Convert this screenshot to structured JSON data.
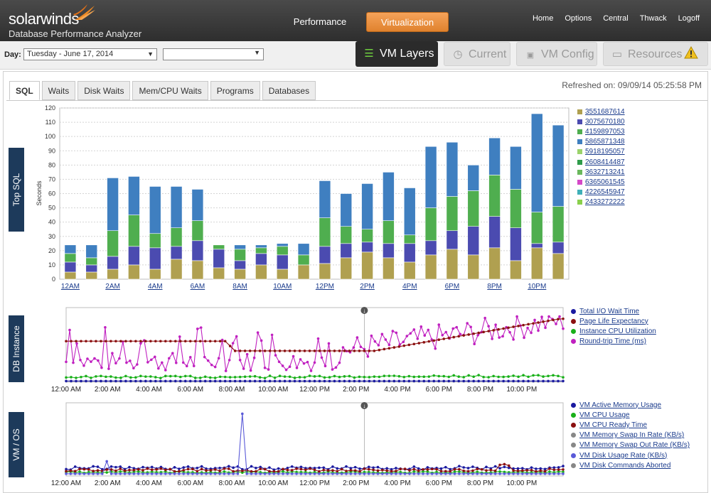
{
  "header": {
    "logo_text": "solarwinds",
    "product_name": "Database Performance Analyzer",
    "nav": {
      "performance": "Performance",
      "virtualization": "Virtualization"
    },
    "links": [
      "Home",
      "Options",
      "Central",
      "Thwack",
      "Logoff"
    ],
    "accent_color": "#e88a35"
  },
  "toolbar": {
    "day_label": "Day:",
    "day_value": "Tuesday - June 17, 2014",
    "second_select_value": "",
    "view_tabs": [
      {
        "label": "VM Layers",
        "icon": "layers-icon",
        "active": true
      },
      {
        "label": "Current",
        "icon": "clock-icon",
        "active": false
      },
      {
        "label": "VM Config",
        "icon": "vm-icon",
        "active": false
      },
      {
        "label": "Resources",
        "icon": "monitor-icon",
        "active": false
      }
    ]
  },
  "tabs": [
    "SQL",
    "Waits",
    "Disk Waits",
    "Mem/CPU Waits",
    "Programs",
    "Databases"
  ],
  "active_tab": "SQL",
  "refreshed": "Refreshed on: 09/09/14 05:25:58 PM",
  "sections": {
    "top_sql": "Top SQL",
    "db_instance": "DB Instance",
    "vm_os": "VM / OS"
  },
  "chart_data": [
    {
      "type": "bar",
      "stacked": true,
      "ylabel": "Seconds",
      "ylim": [
        0,
        120
      ],
      "yticks": [
        0,
        10,
        20,
        30,
        40,
        50,
        60,
        70,
        80,
        90,
        100,
        110,
        120
      ],
      "x_tick_labels": [
        "12AM",
        "2AM",
        "4AM",
        "6AM",
        "8AM",
        "10AM",
        "12PM",
        "2PM",
        "4PM",
        "6PM",
        "8PM",
        "10PM"
      ],
      "legend": [
        "3551687614",
        "3075670180",
        "4159897053",
        "5865871348",
        "5918195057",
        "2608414487",
        "3632713241",
        "6365061545",
        "4226545947",
        "2433272222"
      ],
      "colors": [
        "#b0a050",
        "#4b4bb0",
        "#4fae4f",
        "#3f7fc0",
        "#9bd36b",
        "#2f9c4a",
        "#6ab85c",
        "#d548c8",
        "#3fb0b8",
        "#8ad04c"
      ],
      "totals": [
        24,
        24,
        71,
        72,
        65,
        65,
        63,
        24,
        24,
        24,
        25,
        25,
        69,
        60,
        67,
        75,
        64,
        93,
        96,
        80,
        99,
        93,
        116,
        108
      ],
      "series": [
        {
          "name": "3551687614",
          "values": [
            5,
            5,
            7,
            10,
            7,
            14,
            13,
            8,
            7,
            10,
            7,
            10,
            11,
            15,
            19,
            15,
            12,
            17,
            21,
            17,
            22,
            13,
            22,
            18
          ]
        },
        {
          "name": "3075670180",
          "values": [
            7,
            5,
            9,
            13,
            15,
            9,
            14,
            13,
            6,
            8,
            10,
            0,
            12,
            10,
            7,
            10,
            13,
            10,
            13,
            20,
            22,
            23,
            3,
            8
          ]
        },
        {
          "name": "4159897053",
          "values": [
            6,
            5,
            18,
            22,
            10,
            13,
            14,
            3,
            8,
            4,
            6,
            7,
            20,
            12,
            9,
            16,
            6,
            23,
            24,
            25,
            29,
            27,
            22,
            25
          ]
        },
        {
          "name": "5865871348",
          "values": [
            6,
            9,
            37,
            27,
            33,
            29,
            22,
            0,
            3,
            2,
            2,
            8,
            26,
            23,
            32,
            34,
            33,
            43,
            38,
            18,
            26,
            30,
            69,
            57
          ]
        }
      ]
    },
    {
      "type": "line",
      "x_tick_labels": [
        "12:00 AM",
        "2:00 AM",
        "4:00 AM",
        "6:00 AM",
        "8:00 AM",
        "10:00 AM",
        "12:00 PM",
        "2:00 PM",
        "4:00 PM",
        "6:00 PM",
        "8:00 PM",
        "10:00 PM"
      ],
      "series": [
        {
          "name": "Total I/O Wait Time",
          "color": "#1a1aa0"
        },
        {
          "name": "Page Life Expectancy",
          "color": "#8b1010"
        },
        {
          "name": "Instance CPU Utilization",
          "color": "#19b019"
        },
        {
          "name": "Round-trip Time (ms)",
          "color": "#c020c0"
        }
      ]
    },
    {
      "type": "line",
      "x_tick_labels": [
        "12:00 AM",
        "2:00 AM",
        "4:00 AM",
        "6:00 AM",
        "8:00 AM",
        "10:00 AM",
        "12:00 PM",
        "2:00 PM",
        "4:00 PM",
        "6:00 PM",
        "8:00 PM",
        "10:00 PM"
      ],
      "series": [
        {
          "name": "VM Active Memory Usage",
          "color": "#1a1aa0"
        },
        {
          "name": "VM CPU Usage",
          "color": "#19b019"
        },
        {
          "name": "VM CPU Ready Time",
          "color": "#8b1010"
        },
        {
          "name": "VM Memory Swap In Rate (KB/s)",
          "color": "#888888"
        },
        {
          "name": "VM Memory Swap Out Rate (KB/s)",
          "color": "#888888"
        },
        {
          "name": "VM Disk Usage Rate (KB/s)",
          "color": "#5a5ad8"
        },
        {
          "name": "VM Disk Commands Aborted",
          "color": "#888888"
        }
      ]
    }
  ]
}
